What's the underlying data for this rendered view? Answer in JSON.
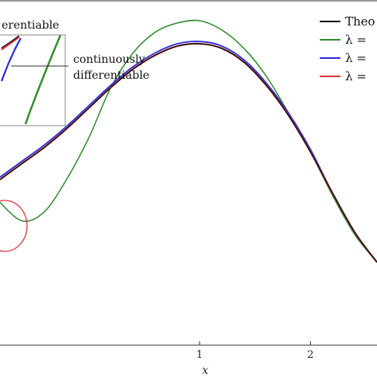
{
  "chart_data": {
    "type": "line",
    "title": "",
    "xlabel": "x",
    "ylabel": "",
    "xlim": [
      -0.8,
      2.6
    ],
    "ylim": [
      0.0,
      1.5
    ],
    "x_ticks": [
      "1",
      "2"
    ],
    "x_tick_values": [
      1,
      2
    ],
    "grid": false,
    "legend_placement": "top-right",
    "series": [
      {
        "name": "Theo",
        "color": "#111111",
        "x": [
          -0.8,
          -0.6,
          -0.4,
          -0.2,
          0.0,
          0.2,
          0.4,
          0.6,
          0.8,
          1.0,
          1.2,
          1.4,
          1.6,
          1.8,
          2.0,
          2.2,
          2.4,
          2.6
        ],
        "y": [
          0.72,
          0.79,
          0.86,
          0.94,
          1.03,
          1.12,
          1.2,
          1.26,
          1.3,
          1.31,
          1.29,
          1.23,
          1.13,
          1.0,
          0.84,
          0.66,
          0.49,
          0.36
        ]
      },
      {
        "name": "λ =",
        "color": "#2e8b2e",
        "x": [
          -0.8,
          -0.6,
          -0.4,
          -0.2,
          0.0,
          0.2,
          0.4,
          0.6,
          0.8,
          1.0,
          1.2,
          1.4,
          1.6,
          1.8,
          2.0,
          2.2,
          2.4,
          2.6
        ],
        "y": [
          0.62,
          0.54,
          0.58,
          0.72,
          0.9,
          1.12,
          1.27,
          1.36,
          1.4,
          1.41,
          1.37,
          1.29,
          1.17,
          1.01,
          0.84,
          0.65,
          0.48,
          0.36
        ]
      },
      {
        "name": "λ =",
        "color": "#2b2bd6",
        "x": [
          -0.8,
          -0.6,
          -0.4,
          -0.2,
          0.0,
          0.2,
          0.4,
          0.6,
          0.8,
          1.0,
          1.2,
          1.4,
          1.6,
          1.8,
          2.0,
          2.2,
          2.4,
          2.6
        ],
        "y": [
          0.73,
          0.8,
          0.87,
          0.95,
          1.04,
          1.13,
          1.21,
          1.27,
          1.31,
          1.32,
          1.3,
          1.24,
          1.14,
          1.01,
          0.85,
          0.66,
          0.49,
          0.36
        ]
      },
      {
        "name": "λ =",
        "color": "#d9363e",
        "x": [
          -0.8,
          -0.6,
          -0.4,
          -0.2,
          0.0,
          0.2,
          0.4,
          0.6,
          0.8,
          1.0,
          1.2,
          1.4,
          1.6,
          1.8,
          2.0,
          2.2,
          2.4,
          2.6
        ],
        "y": [
          0.72,
          0.79,
          0.86,
          0.94,
          1.03,
          1.12,
          1.2,
          1.26,
          1.3,
          1.31,
          1.29,
          1.23,
          1.13,
          1.0,
          0.84,
          0.66,
          0.49,
          0.36
        ]
      }
    ],
    "annotations": {
      "inset_label": "erentiable",
      "callout_label_line1": "continuously",
      "callout_label_line2": "differentiable"
    }
  }
}
